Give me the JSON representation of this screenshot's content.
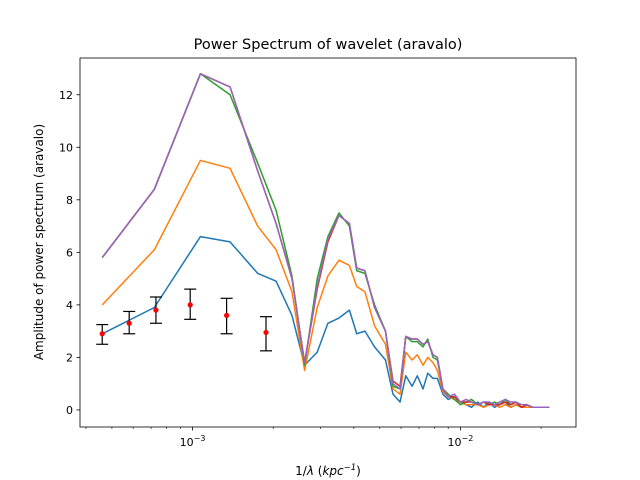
{
  "chart_data": {
    "type": "line",
    "title": "Power Spectrum of wavelet (aravalo)",
    "xlabel_prefix": "1/",
    "xlabel_lambda": "λ",
    "xlabel_unit_open": " (",
    "xlabel_unit_base": "kpc",
    "xlabel_unit_exp": "−1",
    "xlabel_unit_close": ")",
    "ylabel": "Amplitude of power spectrum (aravalo)",
    "xscale": "log",
    "xlim": [
      0.00038,
      0.027
    ],
    "ylim": [
      -0.65,
      13.4
    ],
    "major_xticks": [
      {
        "value": 0.001,
        "base": "10",
        "exp": "−3"
      },
      {
        "value": 0.01,
        "base": "10",
        "exp": "−2"
      }
    ],
    "yticks": [
      0,
      2,
      4,
      6,
      8,
      10,
      12
    ],
    "ytick_labels": [
      "0",
      "2",
      "4",
      "6",
      "8",
      "10",
      "12"
    ],
    "x": [
      0.00046,
      0.00072,
      0.00107,
      0.00138,
      0.00175,
      0.00205,
      0.00235,
      0.00262,
      0.00292,
      0.0032,
      0.00352,
      0.00385,
      0.0041,
      0.0044,
      0.00478,
      0.00525,
      0.0056,
      0.00595,
      0.00625,
      0.0066,
      0.0069,
      0.00725,
      0.00755,
      0.0079,
      0.0082,
      0.0086,
      0.009,
      0.0095,
      0.01,
      0.0105,
      0.011,
      0.0116,
      0.0122,
      0.0128,
      0.0134,
      0.014,
      0.0147,
      0.0154,
      0.0161,
      0.0169,
      0.0177,
      0.0186,
      0.0195,
      0.0205,
      0.0215
    ],
    "series": [
      {
        "color": "#1f77b4",
        "values": [
          2.9,
          3.9,
          6.6,
          6.4,
          5.2,
          4.9,
          3.6,
          1.7,
          2.2,
          3.3,
          3.5,
          3.8,
          2.9,
          3.0,
          2.4,
          1.9,
          0.6,
          0.3,
          1.3,
          0.9,
          1.3,
          0.8,
          1.4,
          1.2,
          1.2,
          0.6,
          0.4,
          0.5,
          0.3,
          0.2,
          0.1,
          0.3,
          0.1,
          0.3,
          0.1,
          0.2,
          0.3,
          0.1,
          0.2,
          0.1,
          0.1,
          0.1,
          0.1,
          0.1,
          0.1
        ]
      },
      {
        "color": "#ff7f0e",
        "values": [
          4.0,
          6.1,
          9.5,
          9.2,
          7.0,
          6.1,
          4.5,
          1.5,
          3.9,
          5.1,
          5.7,
          5.5,
          4.7,
          4.5,
          3.2,
          2.5,
          0.8,
          0.6,
          2.2,
          1.9,
          2.1,
          1.7,
          2.0,
          1.8,
          1.5,
          0.7,
          0.5,
          0.4,
          0.3,
          0.2,
          0.2,
          0.2,
          0.1,
          0.2,
          0.2,
          0.1,
          0.2,
          0.1,
          0.2,
          0.1,
          0.1,
          0.1,
          0.1,
          0.1,
          0.1
        ]
      },
      {
        "color": "#2ca02c",
        "values": [
          5.8,
          8.4,
          12.8,
          12.0,
          9.4,
          7.6,
          5.1,
          1.7,
          5.0,
          6.6,
          7.5,
          7.0,
          5.3,
          5.2,
          4.0,
          3.0,
          0.9,
          0.8,
          2.8,
          2.6,
          2.6,
          2.4,
          2.7,
          2.0,
          1.9,
          0.8,
          0.6,
          0.4,
          0.2,
          0.3,
          0.4,
          0.2,
          0.3,
          0.2,
          0.3,
          0.2,
          0.4,
          0.2,
          0.3,
          0.1,
          0.2,
          0.1,
          0.1,
          0.1,
          0.1
        ]
      },
      {
        "color": "#d62728",
        "values": [
          5.8,
          8.4,
          12.8,
          12.3,
          9.1,
          7.1,
          5.0,
          1.8,
          4.6,
          6.4,
          7.4,
          7.1,
          5.4,
          5.3,
          3.9,
          3.0,
          1.1,
          0.9,
          2.8,
          2.7,
          2.7,
          2.5,
          2.6,
          2.1,
          2.0,
          0.8,
          0.5,
          0.5,
          0.3,
          0.3,
          0.3,
          0.2,
          0.3,
          0.2,
          0.2,
          0.2,
          0.3,
          0.2,
          0.3,
          0.1,
          0.2,
          0.1,
          0.1,
          0.1,
          0.1
        ]
      },
      {
        "color": "#9467bd",
        "values": [
          5.8,
          8.4,
          12.8,
          12.3,
          9.1,
          7.1,
          5.0,
          1.8,
          4.7,
          6.5,
          7.4,
          7.1,
          5.4,
          5.3,
          3.9,
          3.0,
          1.0,
          0.8,
          2.8,
          2.7,
          2.7,
          2.5,
          2.6,
          2.1,
          2.0,
          0.8,
          0.5,
          0.6,
          0.3,
          0.4,
          0.3,
          0.2,
          0.3,
          0.3,
          0.2,
          0.3,
          0.4,
          0.3,
          0.3,
          0.2,
          0.2,
          0.1,
          0.1,
          0.1,
          0.1
        ]
      }
    ],
    "errorbars": {
      "color": "#000000",
      "marker_color": "#ff0000",
      "points": [
        {
          "x": 0.00046,
          "y": 2.9,
          "low": 2.5,
          "high": 3.25
        },
        {
          "x": 0.00058,
          "y": 3.3,
          "low": 2.9,
          "high": 3.75
        },
        {
          "x": 0.00073,
          "y": 3.8,
          "low": 3.3,
          "high": 4.3
        },
        {
          "x": 0.00098,
          "y": 4.0,
          "low": 3.45,
          "high": 4.6
        },
        {
          "x": 0.00134,
          "y": 3.6,
          "low": 2.9,
          "high": 4.25
        },
        {
          "x": 0.00188,
          "y": 2.95,
          "low": 2.25,
          "high": 3.55
        }
      ]
    }
  }
}
